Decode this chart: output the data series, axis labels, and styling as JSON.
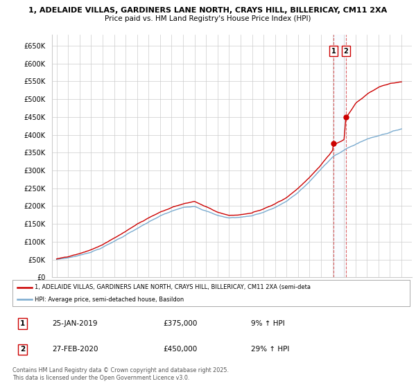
{
  "title_line1": "1, ADELAIDE VILLAS, GARDINERS LANE NORTH, CRAYS HILL, BILLERICAY, CM11 2XA",
  "title_line2": "Price paid vs. HM Land Registry's House Price Index (HPI)",
  "ytick_labels": [
    "£0",
    "£50K",
    "£100K",
    "£150K",
    "£200K",
    "£250K",
    "£300K",
    "£350K",
    "£400K",
    "£450K",
    "£500K",
    "£550K",
    "£600K",
    "£650K"
  ],
  "yticks": [
    0,
    50000,
    100000,
    150000,
    200000,
    250000,
    300000,
    350000,
    400000,
    450000,
    500000,
    550000,
    600000,
    650000
  ],
  "ylim": [
    0,
    680000
  ],
  "line1_color": "#cc0000",
  "line2_color": "#7aabcf",
  "purchase1_year": 2019.08,
  "purchase1_price": 375000,
  "purchase2_year": 2020.17,
  "purchase2_price": 450000,
  "legend_label1": "1, ADELAIDE VILLAS, GARDINERS LANE NORTH, CRAYS HILL, BILLERICAY, CM11 2XA (semi-deta",
  "legend_label2": "HPI: Average price, semi-detached house, Basildon",
  "table_row1": [
    "1",
    "25-JAN-2019",
    "£375,000",
    "9% ↑ HPI"
  ],
  "table_row2": [
    "2",
    "27-FEB-2020",
    "£450,000",
    "29% ↑ HPI"
  ],
  "footer": "Contains HM Land Registry data © Crown copyright and database right 2025.\nThis data is licensed under the Open Government Licence v3.0.",
  "background_color": "#ffffff",
  "grid_color": "#cccccc",
  "span_color": "#ddeeff",
  "start_year": 1995,
  "end_year": 2025
}
